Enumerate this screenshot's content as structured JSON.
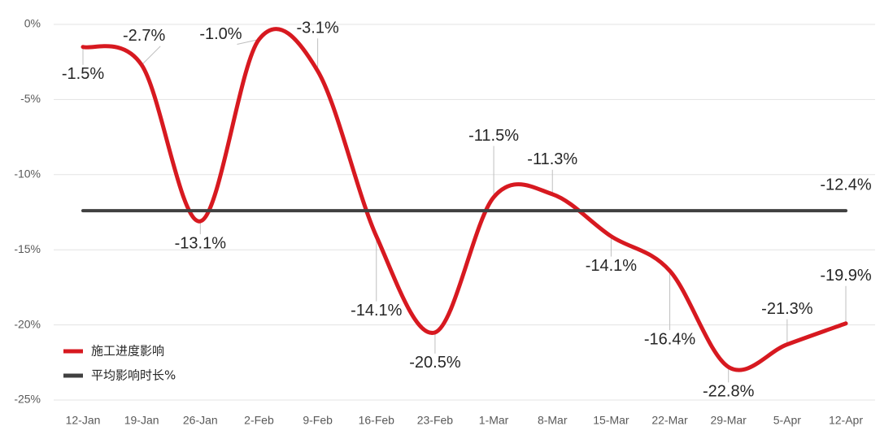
{
  "chart_data": {
    "type": "line",
    "categories": [
      "12-Jan",
      "19-Jan",
      "26-Jan",
      "2-Feb",
      "9-Feb",
      "16-Feb",
      "23-Feb",
      "1-Mar",
      "8-Mar",
      "15-Mar",
      "22-Mar",
      "29-Mar",
      "5-Apr",
      "12-Apr"
    ],
    "series": [
      {
        "name": "施工进度影响",
        "color": "#d71920",
        "smooth": true,
        "values": [
          -1.5,
          -2.7,
          -13.1,
          -1.0,
          -3.1,
          -14.1,
          -20.5,
          -11.5,
          -11.3,
          -14.1,
          -16.4,
          -22.8,
          -21.3,
          -19.9
        ],
        "value_labels": [
          "-1.5%",
          "-2.7%",
          "-13.1%",
          "-1.0%",
          "-3.1%",
          "-14.1%",
          "-20.5%",
          "-11.5%",
          "-11.3%",
          "-14.1%",
          "-16.4%",
          "-22.8%",
          "-21.3%",
          "-19.9%"
        ]
      },
      {
        "name": "平均影响时长%",
        "color": "#404040",
        "smooth": false,
        "values": [
          -12.4,
          -12.4,
          -12.4,
          -12.4,
          -12.4,
          -12.4,
          -12.4,
          -12.4,
          -12.4,
          -12.4,
          -12.4,
          -12.4,
          -12.4,
          -12.4
        ],
        "value_labels": [
          null,
          null,
          null,
          null,
          null,
          null,
          null,
          null,
          null,
          null,
          null,
          null,
          null,
          "-12.4%"
        ]
      }
    ],
    "ylim": [
      -25,
      0
    ],
    "yticks": [
      {
        "value": 0,
        "label": "0%"
      },
      {
        "value": -5,
        "label": "-5%"
      },
      {
        "value": -10,
        "label": "-10%"
      },
      {
        "value": -15,
        "label": "-15%"
      },
      {
        "value": -20,
        "label": "-20%"
      },
      {
        "value": -25,
        "label": "-25%"
      }
    ],
    "grid": true,
    "legend": "lower left"
  }
}
